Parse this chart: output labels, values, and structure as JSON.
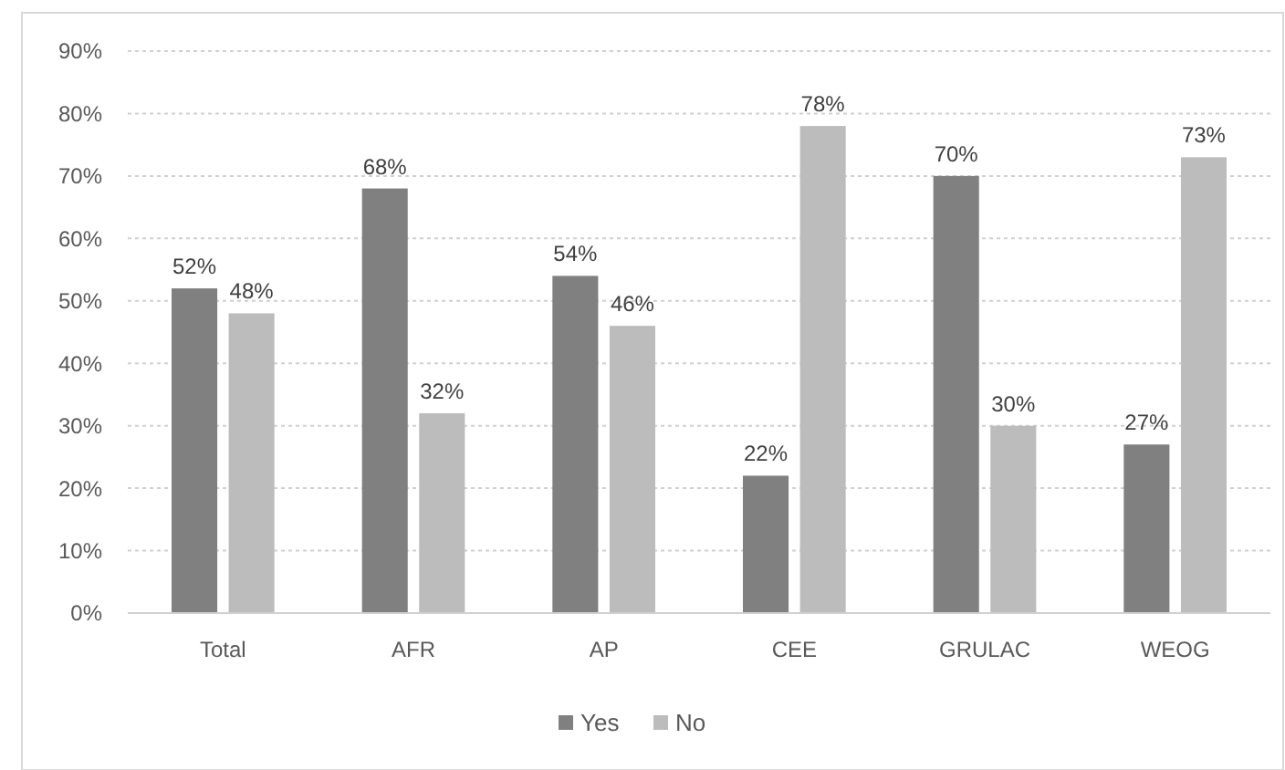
{
  "chart_data": {
    "type": "bar",
    "categories": [
      "Total",
      "AFR",
      "AP",
      "CEE",
      "GRULAC",
      "WEOG"
    ],
    "series": [
      {
        "name": "Yes",
        "color": "#808080",
        "values": [
          52,
          68,
          54,
          22,
          70,
          27
        ],
        "value_labels": [
          "52%",
          "68%",
          "54%",
          "22%",
          "70%",
          "27%"
        ]
      },
      {
        "name": "No",
        "color": "#bcbcbc",
        "values": [
          48,
          32,
          46,
          78,
          30,
          73
        ],
        "value_labels": [
          "48%",
          "32%",
          "46%",
          "78%",
          "30%",
          "73%"
        ]
      }
    ],
    "ylim": [
      0,
      90
    ],
    "yticks": [
      {
        "value": 0,
        "label": "0%"
      },
      {
        "value": 10,
        "label": "10%"
      },
      {
        "value": 20,
        "label": "20%"
      },
      {
        "value": 30,
        "label": "30%"
      },
      {
        "value": 40,
        "label": "40%"
      },
      {
        "value": 50,
        "label": "50%"
      },
      {
        "value": 60,
        "label": "60%"
      },
      {
        "value": 70,
        "label": "70%"
      },
      {
        "value": 80,
        "label": "80%"
      },
      {
        "value": 90,
        "label": "90%"
      }
    ],
    "grid": "y",
    "legend": "bottom"
  }
}
